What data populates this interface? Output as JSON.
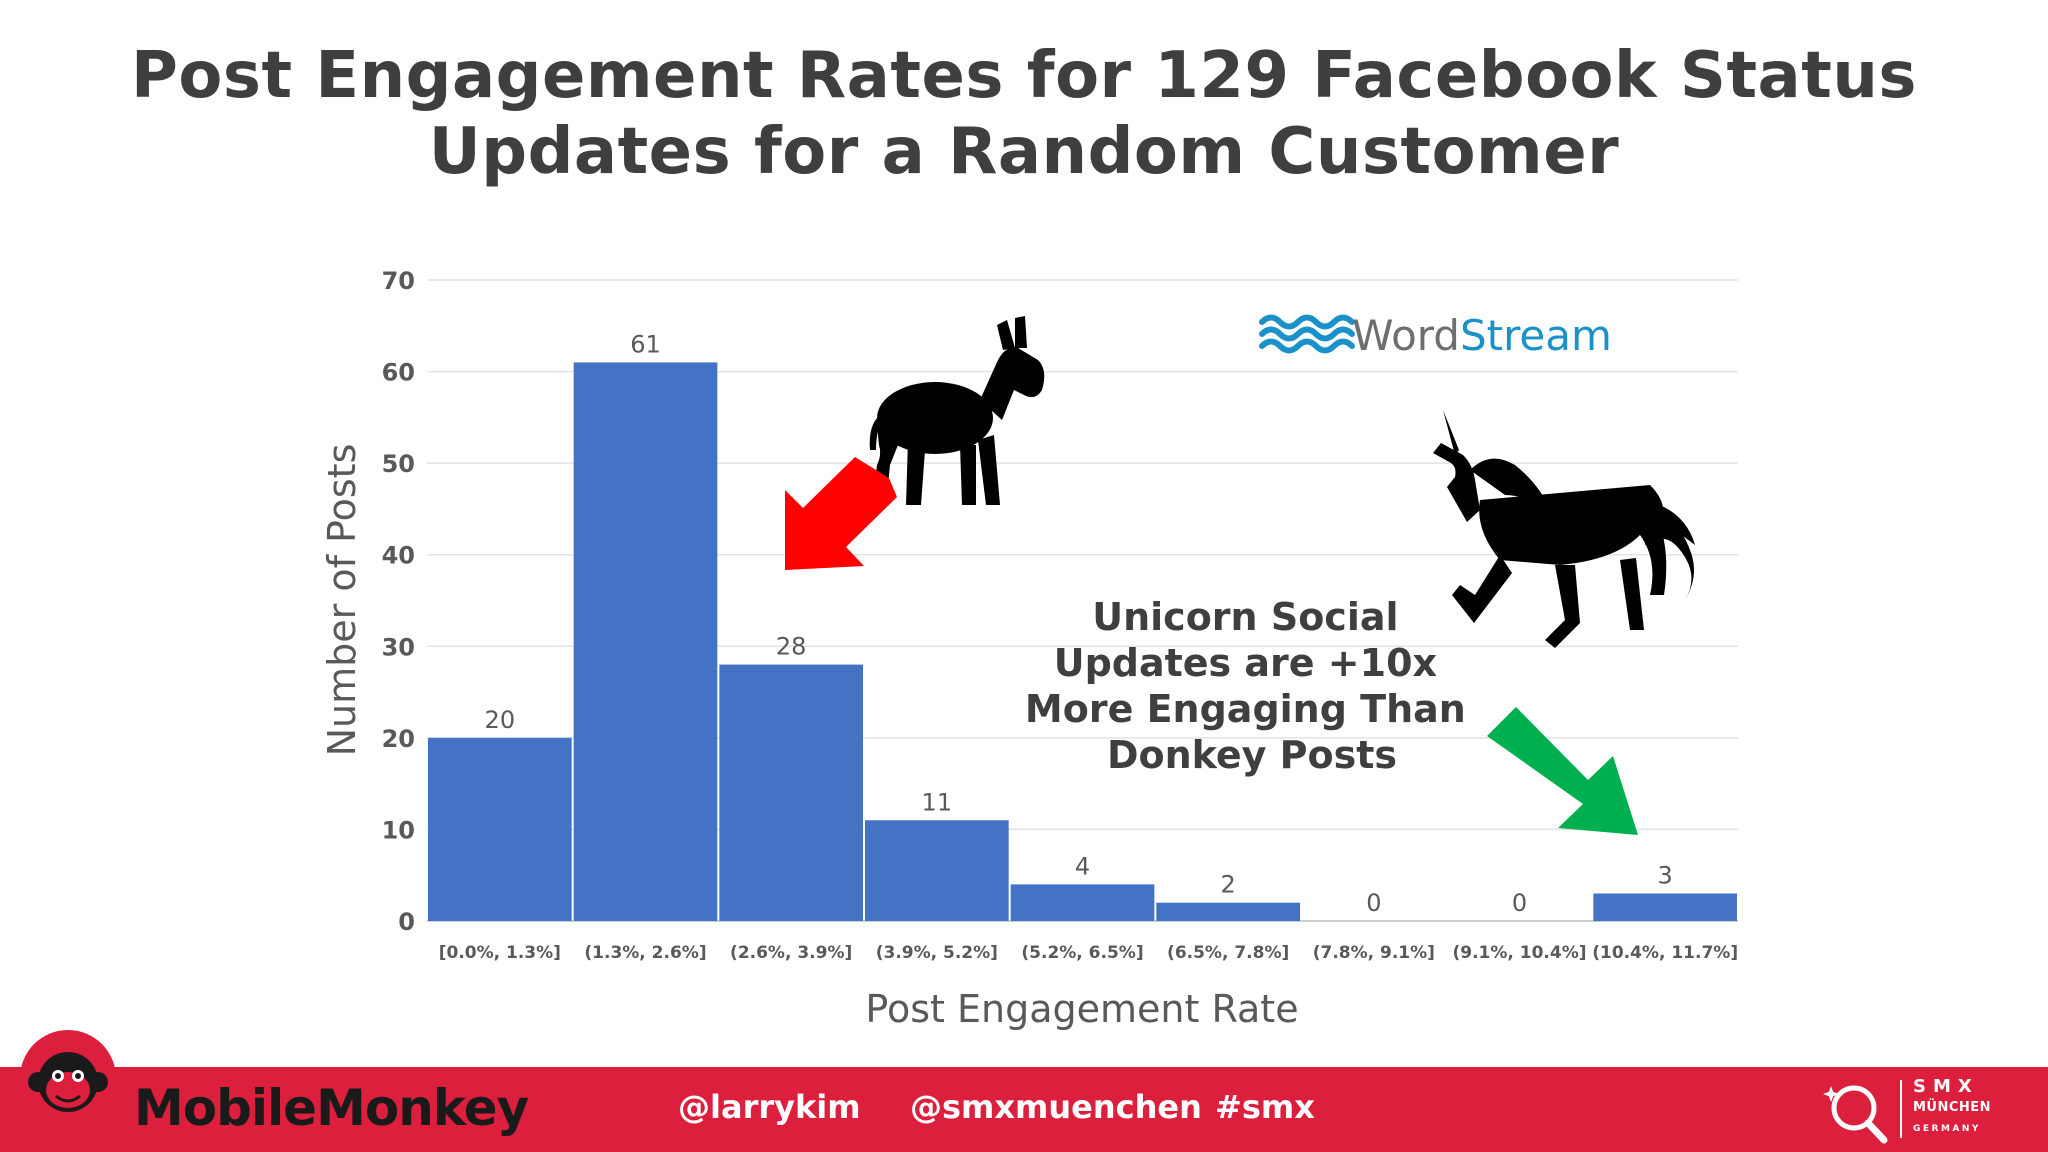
{
  "slide": {
    "title_line1": "Post Engagement Rates for 129 Facebook Status",
    "title_line2": "Updates for a Random Customer"
  },
  "chart_data": {
    "type": "bar",
    "categories": [
      "[0.0%, 1.3%]",
      "(1.3%, 2.6%]",
      "(2.6%, 3.9%]",
      "(3.9%, 5.2%]",
      "(5.2%, 6.5%]",
      "(6.5%, 7.8%]",
      "(7.8%, 9.1%]",
      "(9.1%, 10.4%]",
      "(10.4%, 11.7%]"
    ],
    "values": [
      20,
      61,
      28,
      11,
      4,
      2,
      0,
      0,
      3
    ],
    "data_labels": [
      "20",
      "61",
      "28",
      "11",
      "4",
      "2",
      "0",
      "0",
      "3"
    ],
    "xlabel": "Post Engagement Rate",
    "ylabel": "Number of Posts",
    "ylim": [
      0,
      70
    ],
    "yticks": [
      0,
      10,
      20,
      30,
      40,
      50,
      60,
      70
    ],
    "grid": true,
    "bar_color": "#4472c4",
    "annotation": [
      "Unicorn Social",
      "Updates are +10x",
      "More Engaging Than",
      "Donkey Posts"
    ]
  },
  "logos": {
    "wordstream_a": "Word",
    "wordstream_b": "Stream",
    "wordstream_gray": "#6d6e71",
    "wordstream_blue": "#1a91c8"
  },
  "icons": {
    "donkey": "donkey-silhouette-icon",
    "unicorn": "unicorn-silhouette-icon",
    "red_arrow": "red-arrow-icon",
    "green_arrow": "green-arrow-icon",
    "red_arrow_color": "#ff0000",
    "green_arrow_color": "#00b050"
  },
  "footer": {
    "brand_a": "Mobile",
    "brand_b": "Monkey",
    "handle1": "@larrykim",
    "handle2": "@smxmuenchen",
    "handle3": "#smx",
    "smx_name": "SMX",
    "smx_city": "MÜNCHEN",
    "smx_country": "GERMANY",
    "bar_color": "#db1f3c"
  }
}
